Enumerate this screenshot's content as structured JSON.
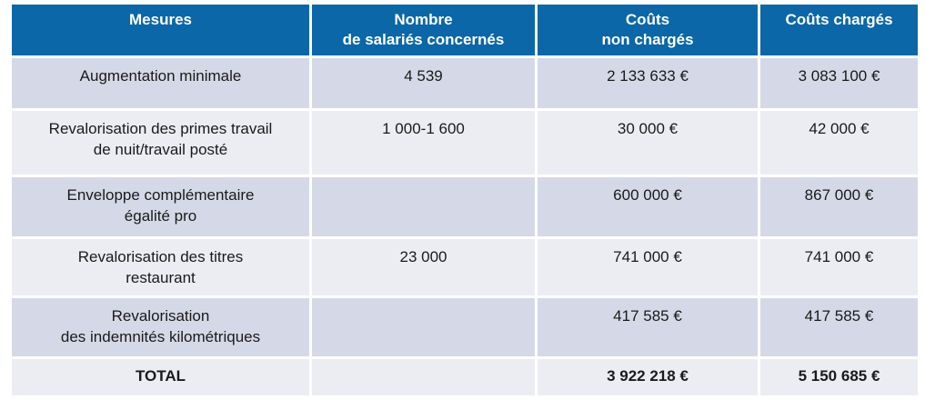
{
  "table": {
    "headers": [
      {
        "line1": "Mesures",
        "line2": ""
      },
      {
        "line1": "Nombre",
        "line2": "de salariés concernés"
      },
      {
        "line1": "Coûts",
        "line2": "non chargés"
      },
      {
        "line1": "Coûts chargés",
        "line2": ""
      }
    ],
    "rows": [
      {
        "mesure_l1": "Augmentation minimale",
        "mesure_l2": "",
        "nombre": "4 539",
        "non_charges": "2 133 633 €",
        "charges": "3 083 100 €"
      },
      {
        "mesure_l1": "Revalorisation des primes travail",
        "mesure_l2": "de nuit/travail posté",
        "nombre": "1 000-1 600",
        "non_charges": "30 000 €",
        "charges": "42 000 €"
      },
      {
        "mesure_l1": "Enveloppe complémentaire",
        "mesure_l2": "égalité pro",
        "nombre": "",
        "non_charges": "600 000 €",
        "charges": "867 000 €"
      },
      {
        "mesure_l1": "Revalorisation des titres",
        "mesure_l2": "restaurant",
        "nombre": "23 000",
        "non_charges": "741 000 €",
        "charges": "741 000 €"
      },
      {
        "mesure_l1": "Revalorisation",
        "mesure_l2": "des indemnités kilométriques",
        "nombre": "",
        "non_charges": "417 585 €",
        "charges": "417 585 €"
      }
    ],
    "total": {
      "label": "TOTAL",
      "nombre": "",
      "non_charges": "3 922 218 €",
      "charges": "5 150 685 €"
    }
  },
  "colors": {
    "header_bg": "#0b67a7",
    "row_odd": "#d5d9e7",
    "row_even": "#ebedf3"
  }
}
